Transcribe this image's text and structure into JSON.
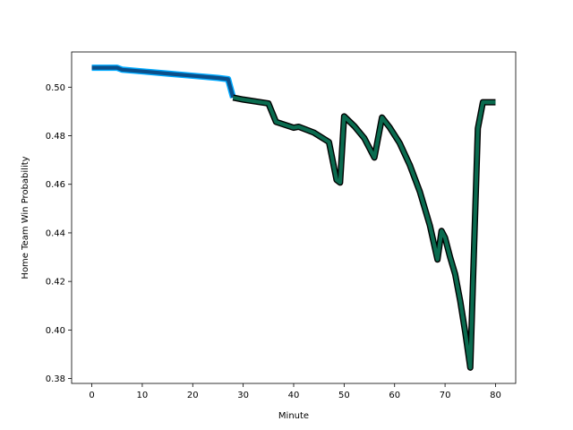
{
  "chart_data": {
    "type": "line",
    "xlabel": "Minute",
    "ylabel": "Home Team Win Probability",
    "xlim": [
      -4,
      84
    ],
    "ylim": [
      0.378,
      0.5145
    ],
    "xticks": [
      0,
      10,
      20,
      30,
      40,
      50,
      60,
      70,
      80
    ],
    "yticks": [
      0.38,
      0.4,
      0.42,
      0.44,
      0.46,
      0.48,
      0.5
    ],
    "ytick_labels": [
      "0.38",
      "0.40",
      "0.42",
      "0.44",
      "0.46",
      "0.48",
      "0.50"
    ],
    "grid": false,
    "series": [
      {
        "color": "#0b4f8a",
        "outline": "#00aaff",
        "x": [
          0,
          5,
          6,
          10,
          15,
          20,
          25,
          27,
          28
        ],
        "y": [
          0.508,
          0.508,
          0.5072,
          0.5065,
          0.5056,
          0.5047,
          0.5038,
          0.5033,
          0.4957
        ]
      },
      {
        "color": "#0a6b4f",
        "outline": "#000000",
        "x": [
          28,
          30,
          35,
          36.5,
          40,
          41,
          44,
          47,
          48.5,
          49.2,
          50,
          52,
          54,
          56,
          57.5,
          59,
          61,
          63,
          65,
          67,
          68.5,
          69.3,
          70,
          71,
          72,
          73,
          74,
          75,
          76.5,
          77.5,
          80
        ],
        "y": [
          0.4957,
          0.4949,
          0.4933,
          0.4857,
          0.4833,
          0.4837,
          0.4813,
          0.4774,
          0.4618,
          0.4607,
          0.488,
          0.484,
          0.479,
          0.471,
          0.4875,
          0.4835,
          0.477,
          0.468,
          0.457,
          0.443,
          0.429,
          0.4408,
          0.438,
          0.43,
          0.423,
          0.412,
          0.399,
          0.3845,
          0.483,
          0.4938,
          0.4938
        ]
      }
    ]
  }
}
